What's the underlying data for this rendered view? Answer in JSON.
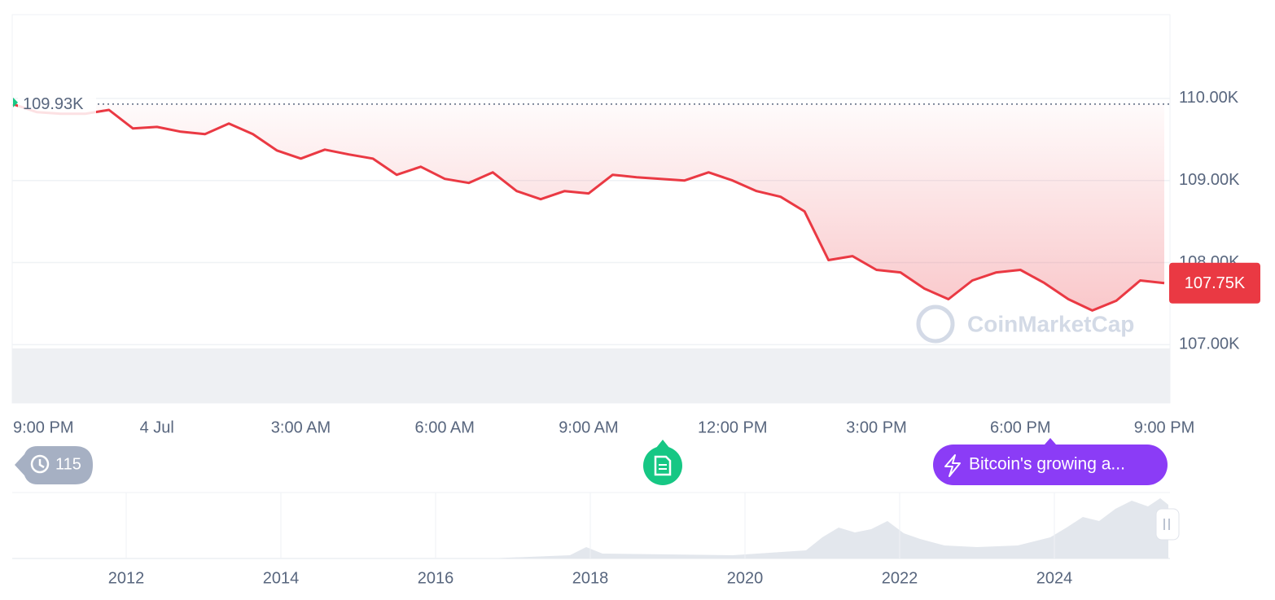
{
  "chart_data": {
    "type": "line",
    "categories": [
      "9:00 PM",
      null,
      null,
      null,
      null,
      null,
      "4 Jul",
      null,
      null,
      null,
      null,
      null,
      "3:00 AM",
      null,
      null,
      null,
      null,
      null,
      "6:00 AM",
      null,
      null,
      null,
      null,
      null,
      "9:00 AM",
      null,
      null,
      null,
      null,
      null,
      "12:00 PM",
      null,
      null,
      null,
      null,
      null,
      "3:00 PM",
      null,
      null,
      null,
      null,
      null,
      "6:00 PM",
      null,
      null,
      null,
      null,
      null,
      "9:00 PM"
    ],
    "series": [
      {
        "color": "#ea3943",
        "values": [
          109930,
          109832,
          109812,
          109812,
          109860,
          109634,
          109653,
          109594,
          109564,
          109693,
          109564,
          109366,
          109267,
          109376,
          109317,
          109267,
          109069,
          109168,
          109020,
          108970,
          109099,
          108871,
          108772,
          108871,
          108842,
          109069,
          109040,
          109020,
          109000,
          109099,
          109000,
          108871,
          108802,
          108624,
          108030,
          108079,
          107911,
          107881,
          107683,
          107554,
          107782,
          107881,
          107911,
          107752,
          107554,
          107416,
          107535,
          107782,
          107750
        ]
      }
    ],
    "ylim": [
      106290,
      111020
    ],
    "yticks": [
      {
        "value": 107000,
        "label": "107.00K"
      },
      {
        "value": 108000,
        "label": "108.00K"
      },
      {
        "value": 109000,
        "label": "109.00K"
      },
      {
        "value": 110000,
        "label": "110.00K"
      }
    ],
    "grid": true,
    "reference_line": {
      "value": 109930,
      "label": "109.93K"
    },
    "last_price": {
      "value": 107750,
      "label": "107.75K"
    }
  },
  "ui": {
    "history_count": 115,
    "news_label": "Bitcoin's growing a...",
    "watermark": "CoinMarketCap"
  },
  "navigator": {
    "xticks": [
      "2012",
      "2014",
      "2016",
      "2018",
      "2020",
      "2022",
      "2024"
    ]
  }
}
